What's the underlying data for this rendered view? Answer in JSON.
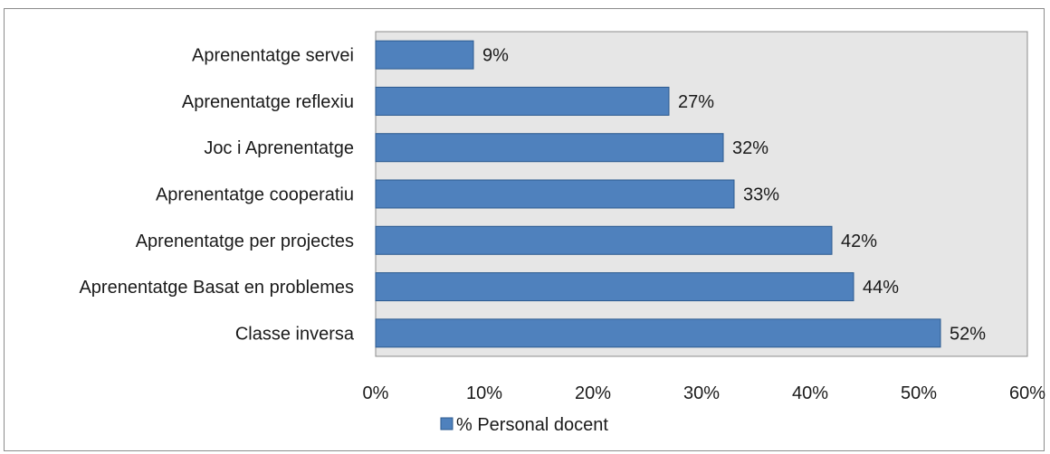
{
  "chart_data": {
    "type": "bar",
    "orientation": "horizontal",
    "categories": [
      "Aprenentatge servei",
      "Aprenentatge reflexiu",
      "Joc i Aprenentatge",
      "Aprenentatge cooperatiu",
      "Aprenentatge per projectes",
      "Aprenentatge Basat en problemes",
      "Classe inversa"
    ],
    "series": [
      {
        "name": "% Personal docent",
        "values": [
          9,
          27,
          32,
          33,
          42,
          44,
          52
        ],
        "labels": [
          "9%",
          "27%",
          "32%",
          "33%",
          "42%",
          "44%",
          "52%"
        ]
      }
    ],
    "xlim": [
      0,
      60
    ],
    "xticks": [
      "0%",
      "10%",
      "20%",
      "30%",
      "40%",
      "50%",
      "60%"
    ],
    "grid": false,
    "legend_position": "bottom",
    "colors": {
      "bar_fill": "#4f81bd",
      "bar_stroke": "#2c5a8f",
      "plot_background": "#e6e6e6",
      "axis": "#8c8c8c"
    }
  }
}
